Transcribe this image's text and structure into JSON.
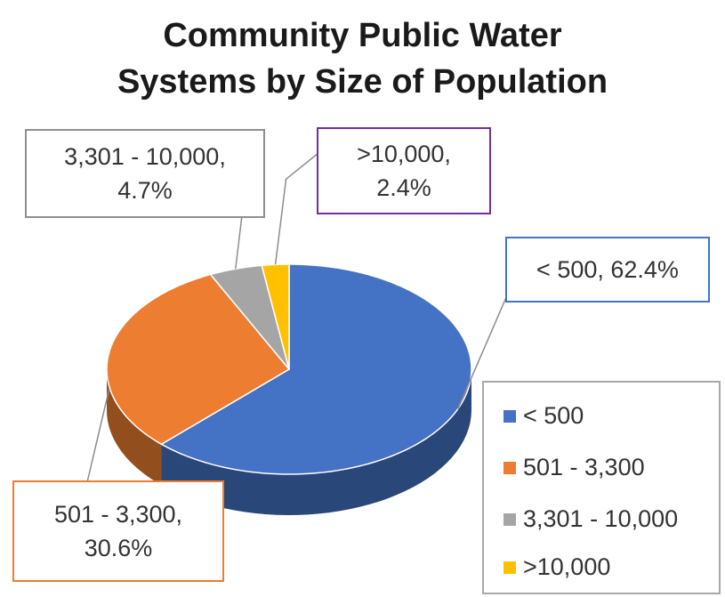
{
  "chart_data": {
    "type": "pie",
    "title_lines": [
      "Community Public Water",
      "Systems by Size of Population"
    ],
    "slices": [
      {
        "label": "< 500",
        "value": 62.4,
        "value_label": "< 500, 62.4%",
        "color": "#4472C4"
      },
      {
        "label": "501 - 3,300",
        "value": 30.6,
        "value_label_lines": [
          "501 - 3,300,",
          "30.6%"
        ],
        "color": "#ED7D31"
      },
      {
        "label": "3,301 - 10,000",
        "value": 4.7,
        "value_label_lines": [
          "3,301 - 10,000,",
          "4.7%"
        ],
        "color": "#A5A5A5"
      },
      {
        "label": ">10,000",
        "value": 2.4,
        "value_label_lines": [
          ">10,000,",
          "2.4%"
        ],
        "color": "#FFC000"
      }
    ],
    "legend": {
      "position": "bottom-right",
      "items": [
        "< 500",
        "501 - 3,300",
        "3,301 - 10,000",
        ">10,000"
      ]
    },
    "style": "3d-pie"
  }
}
